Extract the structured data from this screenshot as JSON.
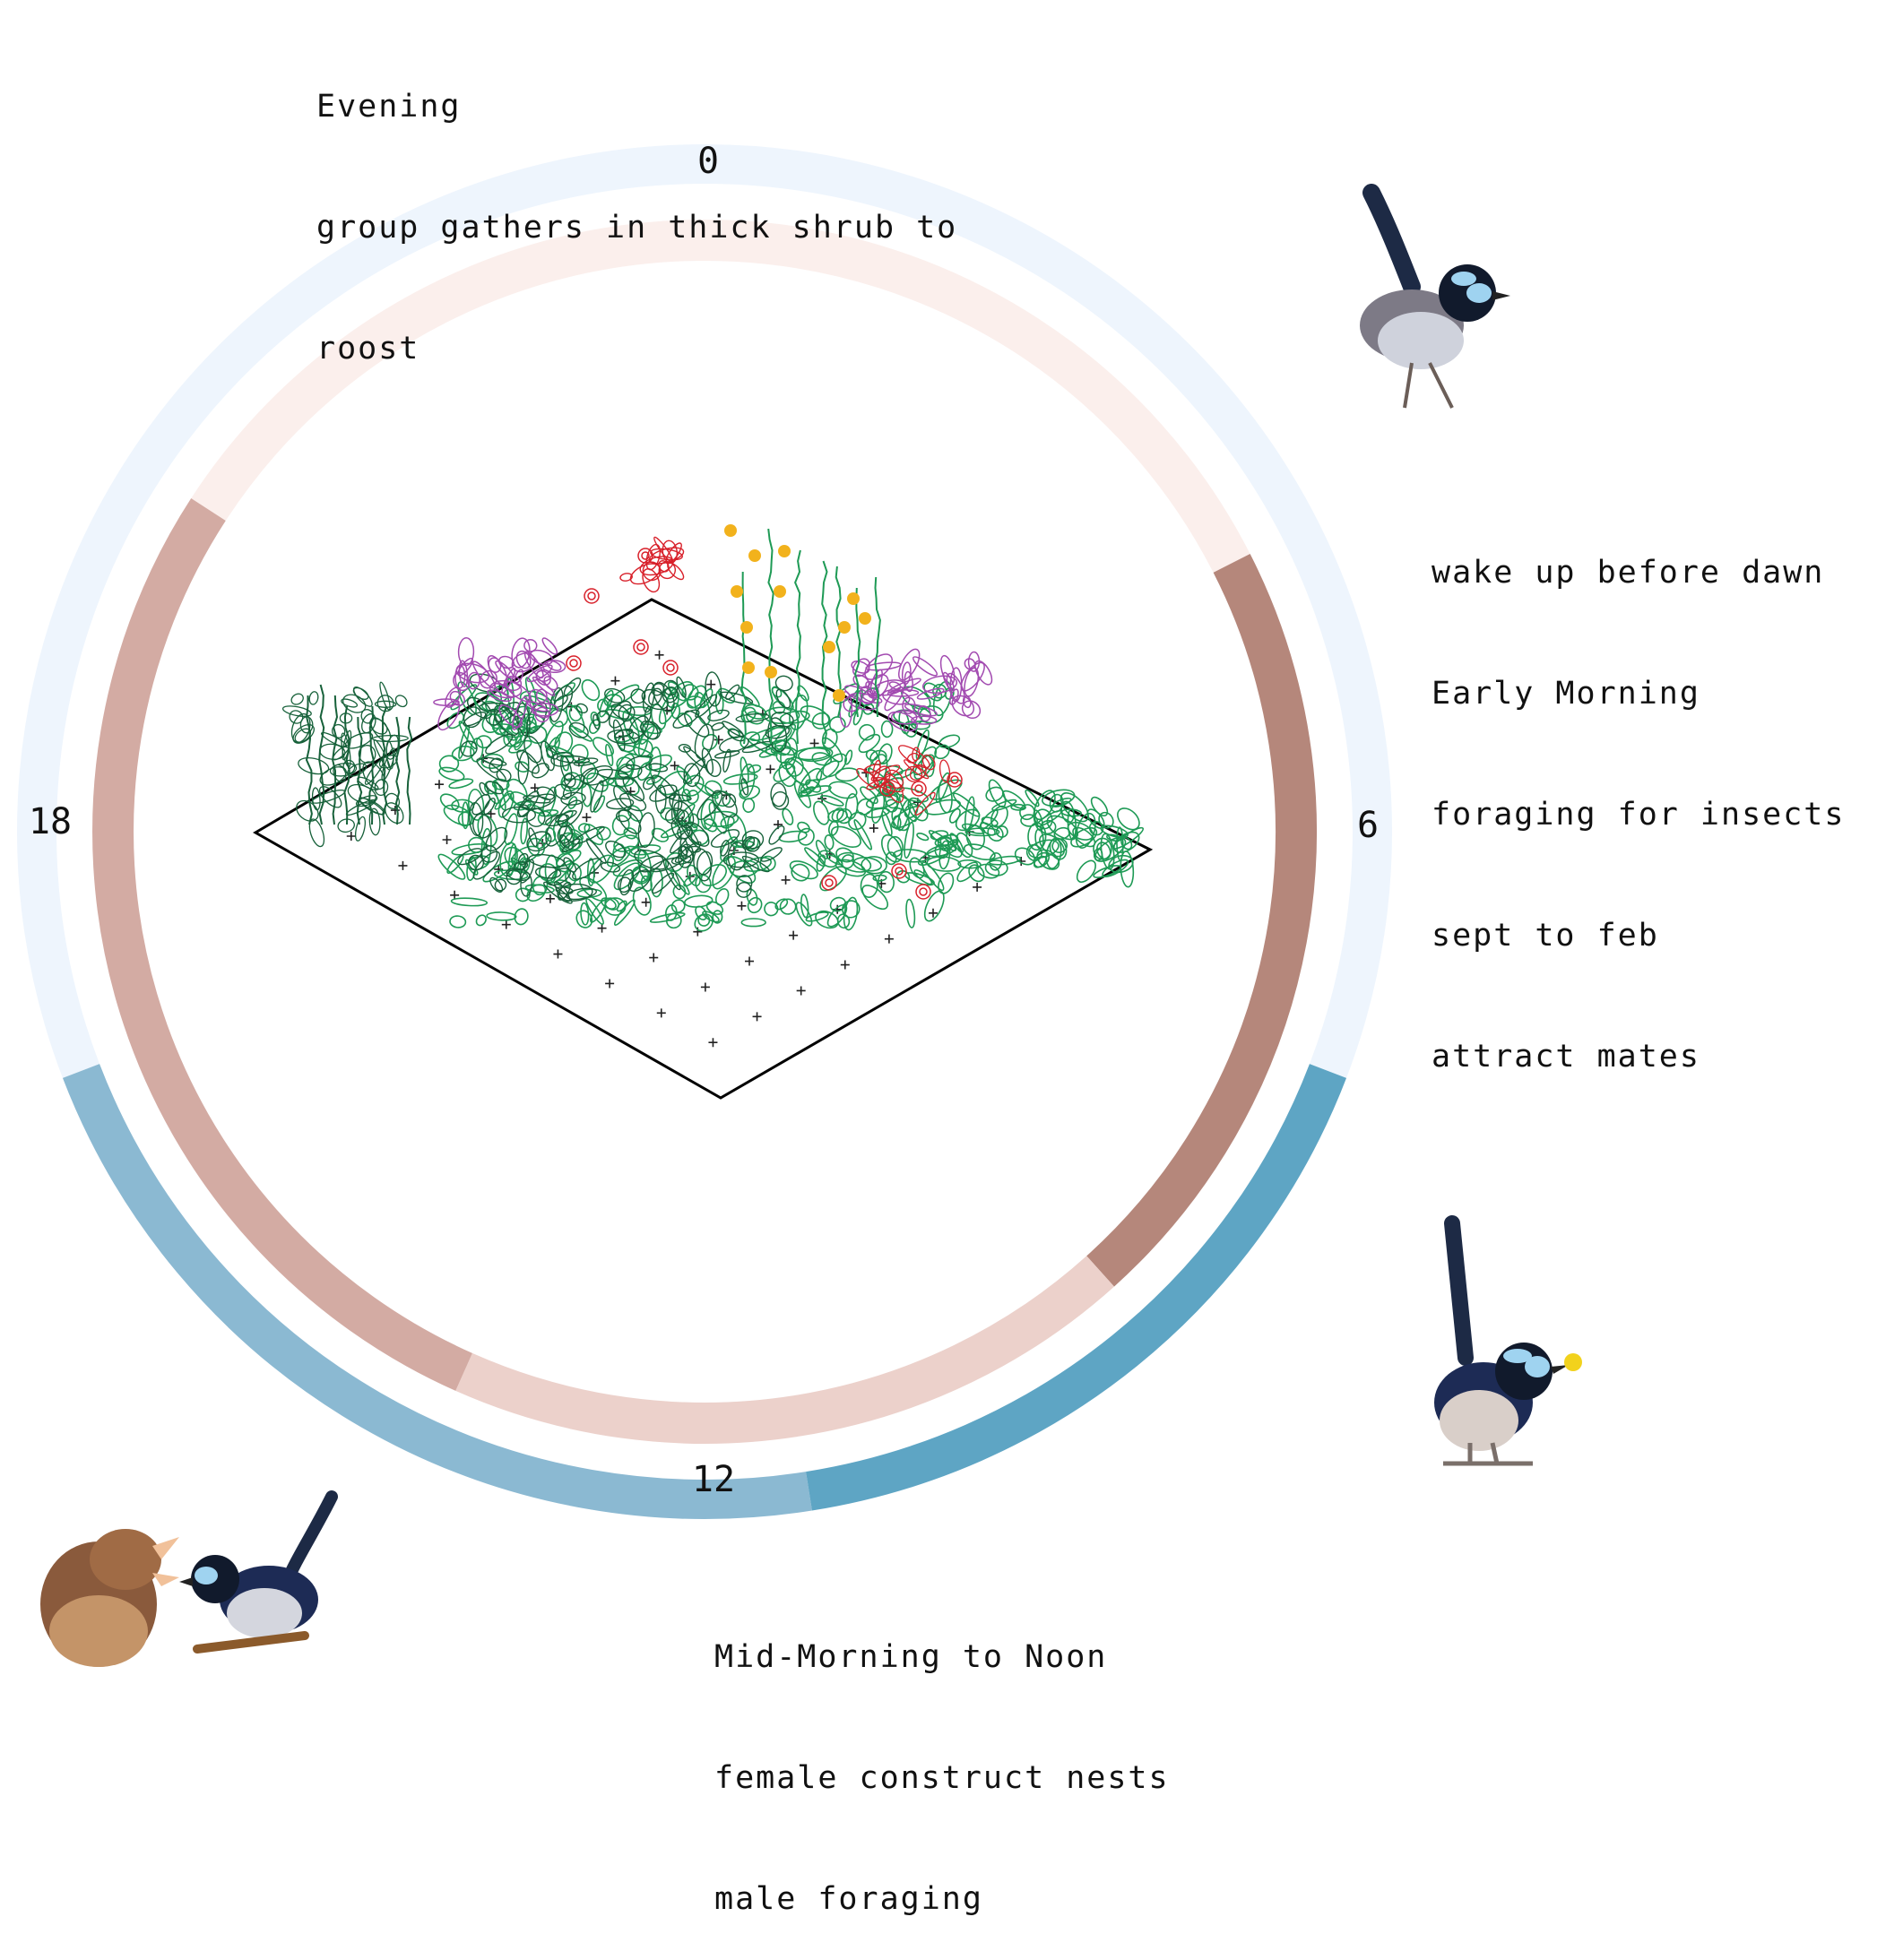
{
  "colors": {
    "outer_ring_light": "#eef5fd",
    "outer_ring_mid": "#8bb9d2",
    "outer_ring_dark": "#5ea5c4",
    "inner_ring_light": "#fbefec",
    "inner_ring_pale": "#ecd1cb",
    "inner_ring_mid": "#d3aba3",
    "inner_ring_dark": "#b5877b",
    "plant_green": "#1e9a55",
    "plant_dark_green": "#17613a",
    "flower_purple": "#a24ab0",
    "flower_red": "#d8202a",
    "flower_yellow": "#f2b21c"
  },
  "clock": {
    "labels": [
      "0",
      "6",
      "12",
      "18"
    ]
  },
  "notes": {
    "evening": {
      "title": "Evening",
      "lines": [
        "group gathers in thick shrub to",
        "roost"
      ]
    },
    "early_morning": {
      "wake": "wake up before dawn",
      "title": "Early Morning",
      "line": "foraging for insects",
      "season": "sept to feb",
      "season_line": "attract mates"
    },
    "mid_morning": {
      "title": "Mid-Morning to Noon",
      "lines": [
        "female construct nests",
        "male foraging"
      ]
    }
  },
  "images": {
    "bird_top_right": "superb-fairy-wren-male",
    "bird_bottom_right": "superb-fairy-wren-with-food",
    "bird_bottom_left": "fairy-wren-with-chicks"
  }
}
